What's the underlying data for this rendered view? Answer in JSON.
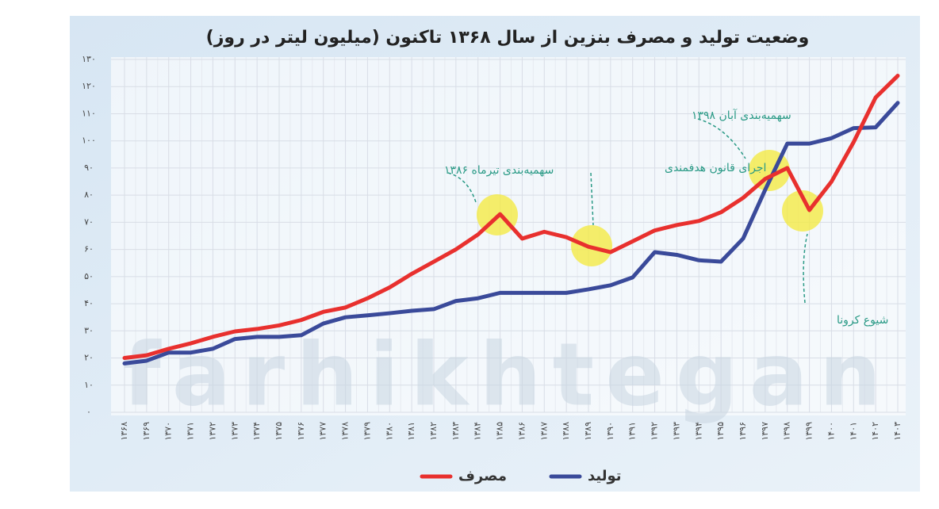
{
  "chart_data": {
    "type": "line",
    "title": "وضعیت تولید و مصرف بنزین از سال ۱۳۶۸ تاکنون (میلیون لیتر در روز)",
    "watermark": "farhikhtegan",
    "categories": [
      "۱۳۶۸",
      "۱۳۶۹",
      "۱۳۷۰",
      "۱۳۷۱",
      "۱۳۷۲",
      "۱۳۷۳",
      "۱۳۷۴",
      "۱۳۷۵",
      "۱۳۷۶",
      "۱۳۷۷",
      "۱۳۷۸",
      "۱۳۷۹",
      "۱۳۸۰",
      "۱۳۸۱",
      "۱۳۸۲",
      "۱۳۸۳",
      "۱۳۸۴",
      "۱۳۸۵",
      "۱۳۸۶",
      "۱۳۸۷",
      "۱۳۸۸",
      "۱۳۸۹",
      "۱۳۹۰",
      "۱۳۹۱",
      "۱۳۹۲",
      "۱۳۹۳",
      "۱۳۹۴",
      "۱۳۹۵",
      "۱۳۹۶",
      "۱۳۹۷",
      "۱۳۹۸",
      "۱۳۹۹",
      "۱۴۰۰",
      "۱۴۰۱",
      "۱۴۰۲",
      "۱۴۰۳"
    ],
    "series": [
      {
        "name": "مصرف",
        "color": "#e8302e",
        "values": [
          20,
          21,
          23.4,
          25.4,
          27.8,
          29.8,
          30.7,
          32,
          34,
          37,
          38.6,
          42,
          46,
          51,
          55.5,
          60,
          65.5,
          73,
          64,
          66.5,
          64.5,
          61,
          59,
          63,
          67,
          69,
          70.5,
          73.7,
          79,
          86,
          90,
          74.5,
          85,
          99.5,
          116,
          124
        ]
      },
      {
        "name": "تولید",
        "color": "#3a4a9a",
        "values": [
          18,
          19,
          22,
          22,
          23.4,
          27,
          27.8,
          27.8,
          28.4,
          32.7,
          35,
          35.7,
          36.5,
          37.4,
          38,
          41,
          42,
          44,
          44,
          44,
          44,
          45.3,
          46.8,
          49.7,
          59,
          58,
          56,
          55.5,
          64,
          82,
          99,
          99,
          101,
          104.7,
          105,
          114
        ]
      }
    ],
    "ylim": [
      0,
      130
    ],
    "yticks": [
      {
        "value": 0,
        "label": "۰"
      },
      {
        "value": 10,
        "label": "۱۰"
      },
      {
        "value": 20,
        "label": "۲۰"
      },
      {
        "value": 30,
        "label": "۳۰"
      },
      {
        "value": 40,
        "label": "۴۰"
      },
      {
        "value": 50,
        "label": "۵۰"
      },
      {
        "value": 60,
        "label": "۶۰"
      },
      {
        "value": 70,
        "label": "۷۰"
      },
      {
        "value": 80,
        "label": "۸۰"
      },
      {
        "value": 90,
        "label": "۹۰"
      },
      {
        "value": 100,
        "label": "۱۰۰"
      },
      {
        "value": 110,
        "label": "۱۱۰"
      },
      {
        "value": 120,
        "label": "۱۲۰"
      },
      {
        "value": 130,
        "label": "۱۳۰"
      }
    ],
    "grid": true,
    "annotations": [
      "سهمیه‌بندی تیرماه ۱۳۸۶",
      "اجرای قانون هدفمندی",
      "سهمیه‌بندی آبان ۱۳۹۸",
      "شیوع کرونا"
    ]
  }
}
